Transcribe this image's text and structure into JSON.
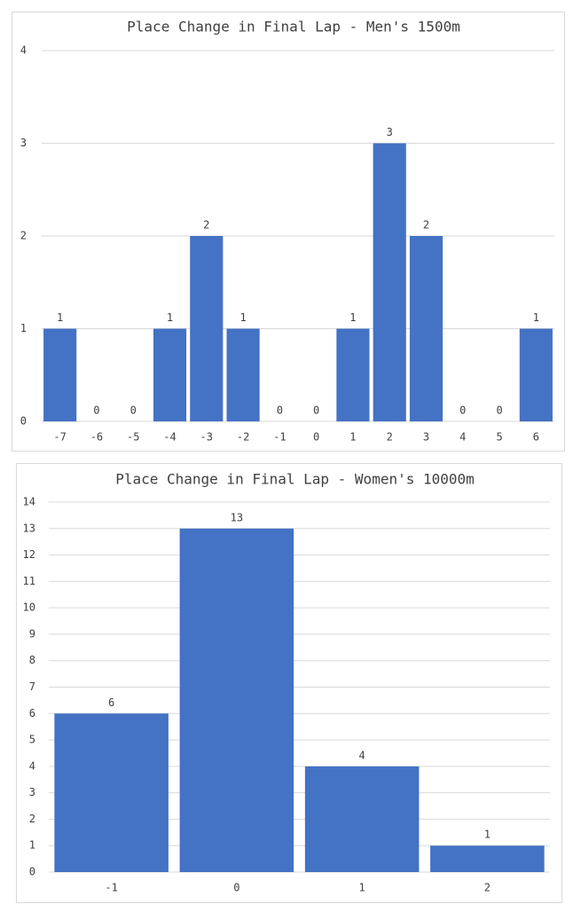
{
  "chart_data": [
    {
      "type": "bar",
      "title": "Place Change in Final Lap - Men's 1500m",
      "categories": [
        "-7",
        "-6",
        "-5",
        "-4",
        "-3",
        "-2",
        "-1",
        "0",
        "1",
        "2",
        "3",
        "4",
        "5",
        "6"
      ],
      "values": [
        1,
        0,
        0,
        1,
        2,
        1,
        0,
        0,
        1,
        3,
        2,
        0,
        0,
        1
      ],
      "color": "#4472c4",
      "ylim": [
        0,
        4
      ],
      "yticks": [
        0,
        1,
        2,
        3,
        4
      ],
      "grid": true
    },
    {
      "type": "bar",
      "title": "Place Change in Final Lap - Women's 10000m",
      "categories": [
        "-1",
        "0",
        "1",
        "2"
      ],
      "values": [
        6,
        13,
        4,
        1
      ],
      "color": "#4472c4",
      "ylim": [
        0,
        14
      ],
      "yticks": [
        0,
        1,
        2,
        3,
        4,
        5,
        6,
        7,
        8,
        9,
        10,
        11,
        12,
        13,
        14
      ],
      "grid": true
    }
  ]
}
